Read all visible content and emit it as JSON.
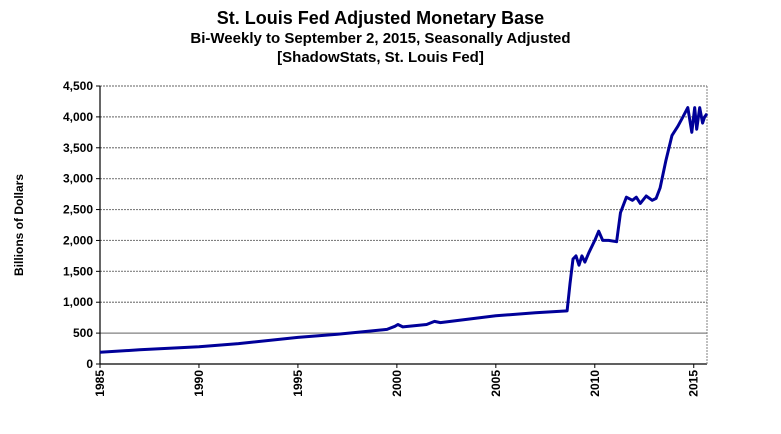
{
  "chart_data": {
    "type": "line",
    "title": "St. Louis Fed Adjusted Monetary Base",
    "subtitle": "Bi-Weekly to September 2, 2015, Seasonally Adjusted",
    "source": "[ShadowStats, St. Louis Fed]",
    "xlabel": "",
    "ylabel": "Billions  of Dollars",
    "xlim": [
      1985,
      2015.67
    ],
    "ylim": [
      0,
      4500
    ],
    "yticks": [
      0,
      500,
      1000,
      1500,
      2000,
      2500,
      3000,
      3500,
      4000,
      4500
    ],
    "ytick_labels": [
      "0",
      "500",
      "1,000",
      "1,500",
      "2,000",
      "2,500",
      "3,000",
      "3,500",
      "4,000",
      "4,500"
    ],
    "xticks": [
      1985,
      1990,
      1995,
      2000,
      2005,
      2010,
      2015
    ],
    "xtick_labels": [
      "1985",
      "1990",
      "1995",
      "2000",
      "2005",
      "2010",
      "2015"
    ],
    "grid": true,
    "line_color": "#000099",
    "series": [
      {
        "name": "Adjusted Monetary Base",
        "x": [
          1985,
          1987,
          1990,
          1992,
          1995,
          1997,
          1999.5,
          1999.9,
          2000.05,
          2000.3,
          2001.5,
          2001.9,
          2002.2,
          2005,
          2007,
          2008.6,
          2008.75,
          2008.9,
          2009.05,
          2009.2,
          2009.35,
          2009.5,
          2009.7,
          2010,
          2010.2,
          2010.4,
          2010.7,
          2011.1,
          2011.3,
          2011.6,
          2011.9,
          2012.1,
          2012.3,
          2012.6,
          2012.9,
          2013.1,
          2013.3,
          2013.6,
          2013.9,
          2014.2,
          2014.45,
          2014.7,
          2014.9,
          2015.05,
          2015.15,
          2015.3,
          2015.45,
          2015.55,
          2015.67
        ],
        "values": [
          190,
          230,
          280,
          330,
          430,
          480,
          560,
          610,
          640,
          600,
          640,
          690,
          670,
          780,
          830,
          860,
          1300,
          1700,
          1750,
          1600,
          1750,
          1650,
          1800,
          2000,
          2150,
          2000,
          2000,
          1980,
          2450,
          2700,
          2650,
          2700,
          2600,
          2720,
          2650,
          2680,
          2850,
          3300,
          3700,
          3850,
          4000,
          4150,
          3750,
          4150,
          3800,
          4150,
          3900,
          4000,
          4050
        ]
      }
    ]
  }
}
